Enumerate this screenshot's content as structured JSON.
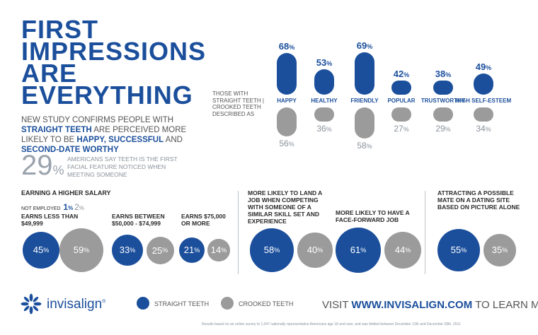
{
  "headline": [
    "FIRST",
    "IMPRESSIONS",
    "ARE",
    "EVERYTHING"
  ],
  "subtitle": {
    "p1": "NEW STUDY CONFIRMS PEOPLE WITH ",
    "b1": "STRAIGHT TEETH",
    "p2": " ARE PERCEIVED MORE LIKELY TO BE ",
    "b2": "HAPPY, SUCCESSFUL",
    "p3": " AND ",
    "b3": "SECOND-DATE WORTHY"
  },
  "first_feature": {
    "value": "29",
    "unit": "%",
    "text": "AMERICANS SAY TEETH IS THE FIRST FACIAL FEATURE NOTICED WHEN MEETING SOMEONE"
  },
  "described_label": {
    "line1": "THOSE WITH",
    "line2": "STRAIGHT TEETH",
    "sep": " |",
    "line3": "CROOKED TEETH",
    "line4": "DESCRIBED AS"
  },
  "colors": {
    "straight": "#1b4f9c",
    "crooked": "#9b9b9b"
  },
  "chart_data": [
    {
      "type": "bar",
      "categories": [
        "HAPPY",
        "HEALTHY",
        "FRIENDLY",
        "POPULAR",
        "TRUSTWORTHY",
        "HIGH SELF-ESTEEM"
      ],
      "series": [
        {
          "name": "STRAIGHT TEETH",
          "values": [
            68,
            53,
            69,
            42,
            38,
            49
          ]
        },
        {
          "name": "CROOKED TEETH",
          "values": [
            56,
            36,
            58,
            27,
            29,
            34
          ]
        }
      ],
      "unit": "%"
    },
    {
      "type": "bubble",
      "title": "EARNING A HIGHER SALARY",
      "not_employed": {
        "label": "NOT EMPLOYED",
        "straight": "1",
        "crooked": "2",
        "unit": "%"
      },
      "groups": [
        {
          "label": "EARNS LESS THAN $49,999",
          "straight": 45,
          "crooked": 59
        },
        {
          "label": "EARNS BETWEEN $50,000 - $74,999",
          "straight": 33,
          "crooked": 25
        },
        {
          "label": "EARNS $75,000 OR MORE",
          "straight": 21,
          "crooked": 14
        }
      ]
    },
    {
      "type": "bubble",
      "groups": [
        {
          "label": "MORE LIKELY TO LAND A JOB WHEN COMPETING WITH SOMEONE OF A SIMILAR SKILL SET AND EXPERIENCE",
          "straight": 58,
          "crooked": 40
        },
        {
          "label": "MORE LIKELY TO HAVE A FACE-FORWARD JOB",
          "straight": 61,
          "crooked": 44
        }
      ]
    },
    {
      "type": "bubble",
      "groups": [
        {
          "label": "ATTRACTING A POSSIBLE MATE ON A DATING SITE BASED ON PICTURE ALONE",
          "straight": 55,
          "crooked": 35
        }
      ]
    }
  ],
  "legend": {
    "straight": "STRAIGHT TEETH",
    "crooked": "CROOKED TEETH"
  },
  "brand": {
    "name": "invisalign",
    "mark": "®"
  },
  "visit": {
    "pre": "VISIT ",
    "url": "WWW.INVISALIGN.COM",
    "post": " TO LEARN MORE"
  },
  "footnote": "Results based on an online survey to 1,047 nationally representative Americans age 18 and over, and was fielded between December 13th and December 28th, 2011"
}
